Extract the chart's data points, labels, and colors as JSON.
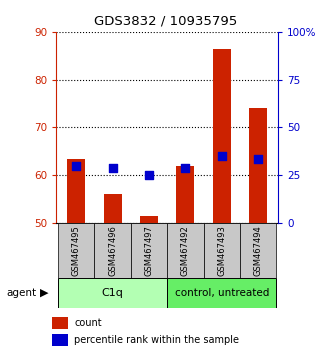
{
  "title": "GDS3832 / 10935795",
  "samples": [
    "GSM467495",
    "GSM467496",
    "GSM467497",
    "GSM467492",
    "GSM467493",
    "GSM467494"
  ],
  "count_values": [
    63.5,
    56.0,
    51.5,
    62.0,
    86.5,
    74.0
  ],
  "percentile_left_values": [
    62.0,
    61.5,
    60.0,
    61.5,
    64.0,
    63.5
  ],
  "count_base": 50,
  "ylim_left": [
    50,
    90
  ],
  "ylim_right": [
    0,
    100
  ],
  "yticks_left": [
    50,
    60,
    70,
    80,
    90
  ],
  "yticks_right": [
    0,
    25,
    50,
    75,
    100
  ],
  "ytick_labels_right": [
    "0",
    "25",
    "50",
    "75",
    "100%"
  ],
  "bar_color": "#cc2200",
  "dot_color": "#0000cc",
  "bg_color": "#ffffff",
  "left_tick_color": "#cc2200",
  "right_tick_color": "#0000cc",
  "legend_count_label": "count",
  "legend_pct_label": "percentile rank within the sample",
  "bar_width": 0.5,
  "dot_size": 28,
  "c1q_color": "#b3ffb3",
  "ctrl_color": "#66ee66",
  "gray_color": "#c8c8c8"
}
